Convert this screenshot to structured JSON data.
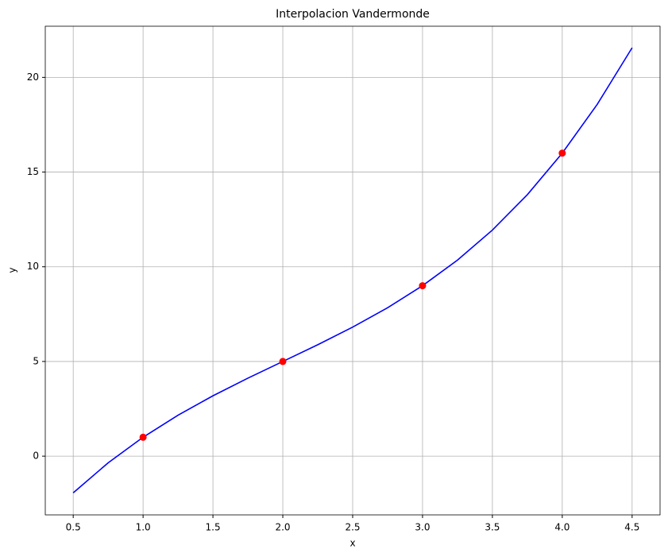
{
  "chart_data": {
    "type": "line",
    "title": "Interpolacion Vandermonde",
    "x_label": "x",
    "y_label": "y",
    "xlim": [
      0.3,
      4.7
    ],
    "ylim": [
      -3.1,
      22.7
    ],
    "xticks": [
      0.5,
      {
        "value": 1,
        "label": "1.0"
      },
      1.5,
      {
        "value": 2,
        "label": "2.0"
      },
      2.5,
      {
        "value": 3,
        "label": "3.0"
      },
      3.5,
      {
        "value": 4,
        "label": "4.0"
      },
      4.5
    ],
    "yticks": [
      0,
      5,
      10,
      15,
      20
    ],
    "grid": true,
    "series": [
      {
        "style": "line",
        "color": "#0000ff",
        "x": [
          0.5,
          0.75,
          1,
          1.25,
          1.5,
          1.75,
          2,
          2.25,
          2.5,
          2.75,
          3,
          3.25,
          3.5,
          3.75,
          4,
          4.25,
          4.5
        ],
        "values": [
          -1.9375,
          -0.3516,
          1,
          2.1641,
          3.1875,
          4.1172,
          5,
          5.8828,
          6.8125,
          7.8359,
          9,
          10.3516,
          11.9375,
          13.8047,
          16,
          18.5703,
          21.5625
        ]
      },
      {
        "style": "markers",
        "color": "#ff0000",
        "x": [
          1,
          2,
          3,
          4
        ],
        "values": [
          1,
          5,
          9,
          16
        ]
      }
    ]
  }
}
